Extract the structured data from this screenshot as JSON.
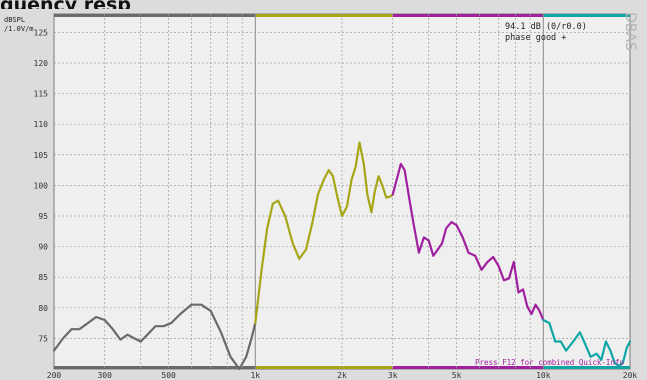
{
  "header": {
    "cropped_title": "quency resp"
  },
  "chart_data": {
    "type": "line",
    "title": "",
    "ylabel_line1": "dBSPL",
    "ylabel_line2": "/1.0V/m",
    "xscale": "log",
    "xlim": [
      200,
      20000
    ],
    "ylim": [
      70,
      128
    ],
    "grid": true,
    "yticks": [
      125,
      120,
      115,
      110,
      105,
      100,
      95,
      90,
      85,
      80,
      75
    ],
    "xticks": [
      {
        "value": 200,
        "label": "200"
      },
      {
        "value": 300,
        "label": "300"
      },
      {
        "value": 500,
        "label": "500"
      },
      {
        "value": 1000,
        "label": "1k"
      },
      {
        "value": 2000,
        "label": "2k"
      },
      {
        "value": 3000,
        "label": "3k"
      },
      {
        "value": 5000,
        "label": "5k"
      },
      {
        "value": 10000,
        "label": "10k"
      },
      {
        "value": 20000,
        "label": "20k"
      }
    ],
    "info_line1": "94.1 dB (0/r0.0)",
    "info_line2": "phase good +",
    "brand": "DBAS",
    "footer_note": "Press F12 for combined Quick-Info",
    "band_colors": {
      "low": "#6a6a6a",
      "mid": "#a6a616",
      "high": "#a020a0",
      "top": "#10a6a6"
    },
    "bands": [
      {
        "name": "low",
        "x_from": 200,
        "x_to": 1000
      },
      {
        "name": "mid",
        "x_from": 1000,
        "x_to": 3000
      },
      {
        "name": "high",
        "x_from": 3000,
        "x_to": 10000
      },
      {
        "name": "top",
        "x_from": 10000,
        "x_to": 20000
      }
    ],
    "series": [
      {
        "band": "low",
        "x": [
          200,
          215,
          230,
          245,
          262,
          280,
          300,
          320,
          340,
          360,
          380,
          400,
          420,
          450,
          480,
          510,
          550,
          600,
          650,
          700,
          760,
          820,
          880,
          930,
          970,
          1000
        ],
        "y": [
          73,
          75,
          76.5,
          76.5,
          77.5,
          78.5,
          78,
          76.5,
          74.8,
          75.6,
          75,
          74.5,
          75.5,
          77,
          77,
          77.5,
          79,
          80.5,
          80.5,
          79.5,
          76,
          72,
          70,
          72,
          75,
          77.5
        ]
      },
      {
        "band": "mid",
        "x": [
          1000,
          1050,
          1100,
          1150,
          1200,
          1270,
          1350,
          1420,
          1500,
          1580,
          1650,
          1730,
          1800,
          1860,
          1930,
          2000,
          2080,
          2160,
          2230,
          2300,
          2380,
          2450,
          2530,
          2600,
          2680,
          2760,
          2850,
          2950,
          3000
        ],
        "y": [
          77.5,
          86,
          93,
          97,
          97.5,
          95,
          90.5,
          88,
          89.5,
          94,
          98.5,
          101,
          102.5,
          101.5,
          98,
          95,
          96.5,
          101,
          103,
          107,
          103.5,
          98.5,
          95.6,
          99,
          101.5,
          100,
          98,
          98.2,
          98.5
        ]
      },
      {
        "band": "high",
        "x": [
          3000,
          3100,
          3200,
          3300,
          3420,
          3550,
          3700,
          3850,
          4000,
          4150,
          4300,
          4450,
          4600,
          4800,
          5000,
          5250,
          5500,
          5800,
          6100,
          6400,
          6700,
          7000,
          7300,
          7600,
          7900,
          8200,
          8500,
          8800,
          9100,
          9400,
          9700,
          10000
        ],
        "y": [
          98.5,
          101,
          103.5,
          102.5,
          98,
          93.5,
          89,
          91.5,
          91,
          88.5,
          89.5,
          90.5,
          93,
          94,
          93.5,
          91.5,
          89,
          88.5,
          86.2,
          87.5,
          88.3,
          86.8,
          84.5,
          84.8,
          87.5,
          82.5,
          83,
          80.2,
          79,
          80.5,
          79.5,
          78
        ]
      },
      {
        "band": "top",
        "x": [
          10000,
          10500,
          11000,
          11500,
          12000,
          12700,
          13400,
          14000,
          14600,
          15300,
          15900,
          16500,
          17100,
          17700,
          18300,
          18900,
          19500,
          20000
        ],
        "y": [
          78,
          77.5,
          74.5,
          74.5,
          73,
          74.5,
          76,
          74,
          72,
          72.5,
          71.5,
          74.5,
          73,
          71,
          70.5,
          71,
          73.5,
          74.5
        ]
      }
    ]
  }
}
